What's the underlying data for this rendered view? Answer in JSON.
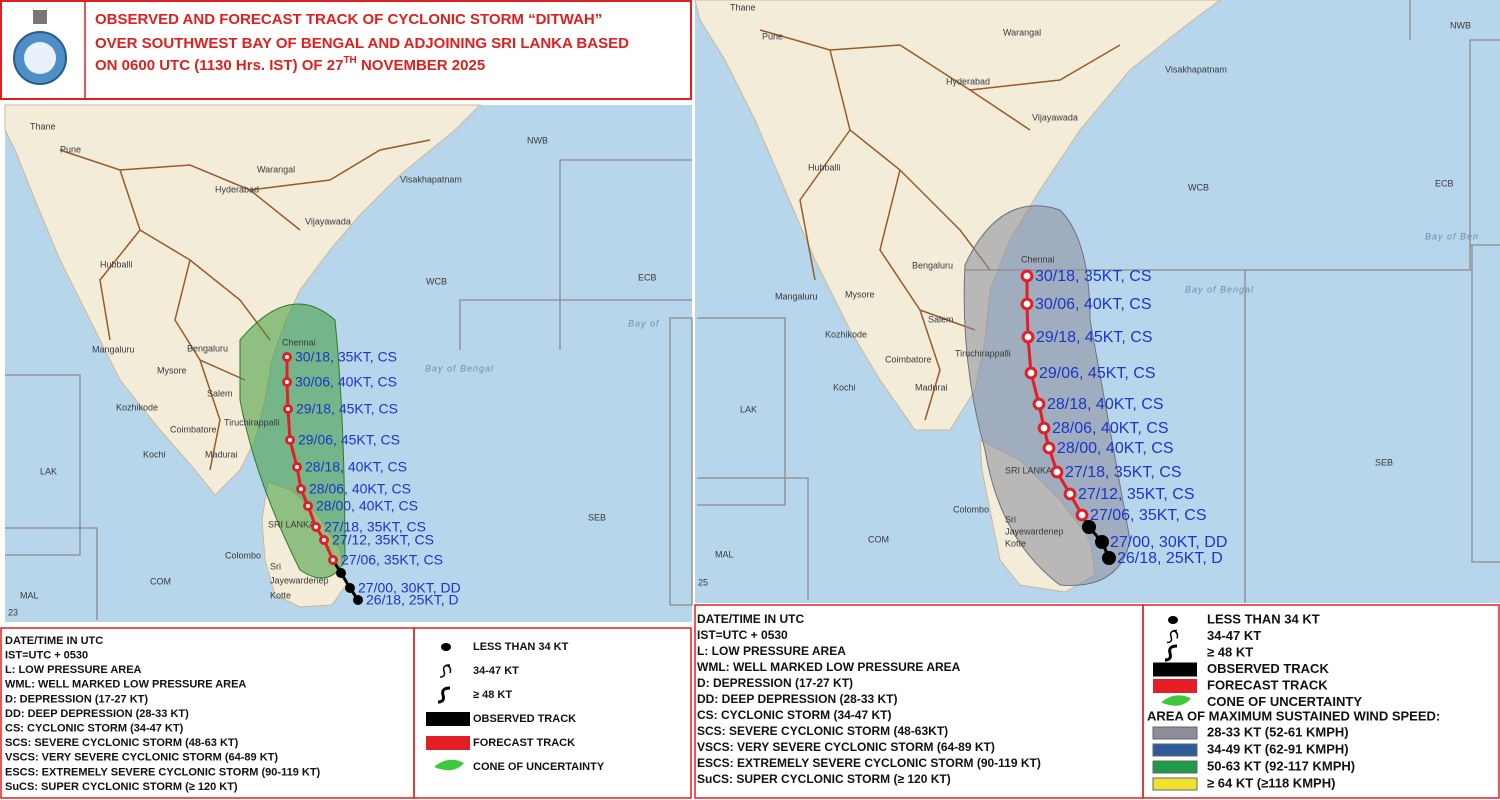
{
  "left": {
    "title": {
      "line1": "OBSERVED AND FORECAST TRACK OF CYCLONIC STORM “DITWAH”",
      "line2": "OVER SOUTHWEST BAY OF BENGAL AND ADJOINING SRI LANKA BASED",
      "line3": "ON 0600 UTC (1130 Hrs. IST) OF 27",
      "line3_sup": "TH",
      "line3_end": " NOVEMBER 2025"
    },
    "places": [
      "Thane",
      "Pune",
      "NWB",
      "Warangal",
      "Hyderabad",
      "Visakhapatnam",
      "Vijayawada",
      "Hubballi",
      "WCB",
      "ECB",
      "Bay of",
      "Bay of Bengal",
      "Chennai",
      "Mangaluru",
      "Bengaluru",
      "Mysore",
      "Salem",
      "Kozhikode",
      "Tiruchirappalli",
      "Coimbatore",
      "Kochi",
      "Madurai",
      "LAK",
      "SRI LANKA",
      "Colombo",
      "Sri",
      "Jayewardenep",
      "Kotte",
      "COM",
      "MAL",
      "SEB",
      "23"
    ],
    "track": [
      "30/18, 35KT, CS",
      "30/06, 40KT, CS",
      "29/18, 45KT, CS",
      "29/06, 45KT, CS",
      "28/18, 40KT, CS",
      "28/06, 40KT, CS",
      "28/00, 40KT, CS",
      "27/18, 35KT, CS",
      "27/12, 35KT, CS",
      "27/06, 35KT, CS",
      "27/00, 30KT, DD",
      "26/18, 25KT, D"
    ],
    "definitions": [
      "DATE/TIME IN UTC",
      "IST=UTC + 0530",
      "L: LOW PRESSURE AREA",
      "WML: WELL MARKED LOW PRESSURE AREA",
      "D: DEPRESSION (17-27 KT)",
      "DD: DEEP DEPRESSION (28-33 KT)",
      "CS: CYCLONIC STORM (34-47 KT)",
      "SCS: SEVERE CYCLONIC STORM (48-63 KT)",
      "VSCS: VERY SEVERE CYCLONIC STORM (64-89 KT)",
      "ESCS: EXTREMELY SEVERE CYCLONIC STORM (90-119 KT)",
      "SuCS: SUPER CYCLONIC STORM (≥ 120 KT)"
    ],
    "legend": [
      "LESS THAN 34 KT",
      "34-47 KT",
      "≥ 48 KT",
      "OBSERVED TRACK",
      "FORECAST TRACK",
      "CONE OF UNCERTAINTY"
    ]
  },
  "right": {
    "places": [
      "Thane",
      "Pune",
      "Warangal",
      "NWB",
      "Hyderabad",
      "Visakhapatnam",
      "Vijayawada",
      "Hubballi",
      "WCB",
      "ECB",
      "Bay of Ben",
      "Bay of Bengal",
      "Chennai",
      "Mangaluru",
      "Bengaluru",
      "Mysore",
      "Salem",
      "Kozhikode",
      "Coimbatore",
      "Tiruchirappalli",
      "Kochi",
      "Madurai",
      "LAK",
      "SRI LANKA",
      "Colombo",
      "Sri",
      "Jayewardenep",
      "Kotte",
      "COM",
      "MAL",
      "SEB",
      "25"
    ],
    "track": [
      "30/18, 35KT, CS",
      "30/06, 40KT, CS",
      "29/18, 45KT, CS",
      "29/06, 45KT, CS",
      "28/18, 40KT, CS",
      "28/06, 40KT, CS",
      "28/00, 40KT, CS",
      "27/18, 35KT, CS",
      "27/12, 35KT, CS",
      "27/06, 35KT, CS",
      "27/00, 30KT, DD",
      "26/18, 25KT, D"
    ],
    "definitions": [
      "DATE/TIME IN UTC",
      "IST=UTC + 0530",
      "L: LOW PRESSURE AREA",
      "WML: WELL MARKED LOW PRESSURE AREA",
      "D: DEPRESSION (17-27 KT)",
      "DD: DEEP DEPRESSION (28-33 KT)",
      "CS: CYCLONIC STORM (34-47 KT)",
      "SCS: SEVERE CYCLONIC STORM (48-63KT)",
      "VSCS: VERY SEVERE CYCLONIC STORM (64-89 KT)",
      "ESCS: EXTREMELY SEVERE CYCLONIC STORM (90-119 KT)",
      "SuCS: SUPER CYCLONIC STORM (≥ 120 KT)"
    ],
    "legend": [
      "LESS THAN 34 KT",
      "34-47 KT",
      "≥ 48 KT",
      "OBSERVED TRACK",
      "FORECAST TRACK",
      "CONE OF UNCERTAINTY"
    ],
    "wind_area": {
      "title": "AREA OF MAXIMUM SUSTAINED WIND SPEED:",
      "items": [
        "28-33 KT (52-61 KMPH)",
        "34-49 KT (62-91 KMPH)",
        "50-63 KT (92-117 KMPH)",
        "≥ 64 KT (≥118 KMPH)"
      ]
    }
  }
}
